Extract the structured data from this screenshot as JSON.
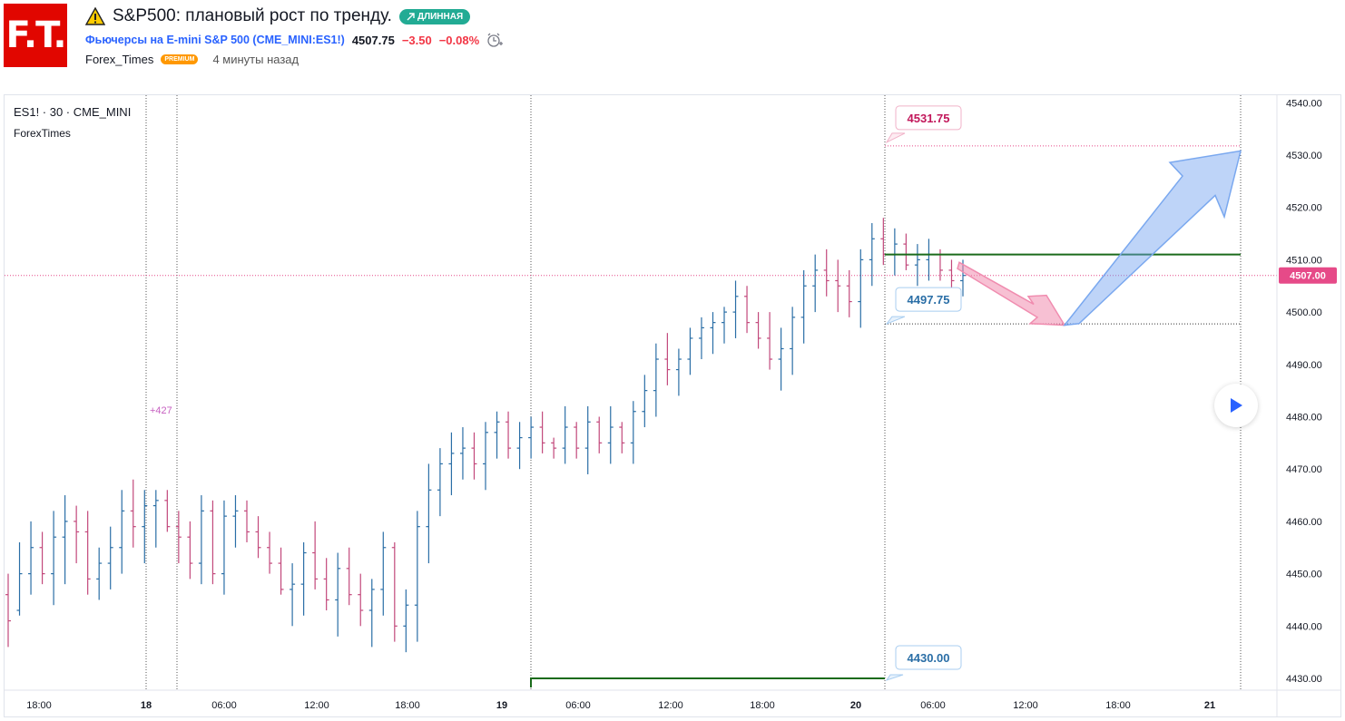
{
  "header": {
    "logo_text": "F.T.",
    "warning_icon": "warning-icon",
    "title": "S&P500: плановый рост по тренду.",
    "badge": "ДЛИННАЯ",
    "badge_icon": "arrow-up-right-icon",
    "symbol_link": "Фьючерсы на E-mini S&P 500 (CME_MINI:ES1!)",
    "price": "4507.75",
    "change": "−3.50",
    "change_pct": "−0.08%",
    "alert_icon": "alarm-clock-icon",
    "author": "Forex_Times",
    "author_badge": "PREMIUM",
    "time_ago": "4 минуты назад"
  },
  "chart": {
    "symbol_info": "ES1! · 30 · CME_MINI",
    "publisher": "ForexTimes",
    "gap_label": "+427",
    "current_price_label": "4507.00",
    "target_high_label": "4531.75",
    "target_low_label": "4497.75",
    "support_label": "4430.00",
    "y_ticks": [
      "4540.00",
      "4530.00",
      "4520.00",
      "4510.00",
      "4500.00",
      "4490.00",
      "4480.00",
      "4470.00",
      "4460.00",
      "4450.00",
      "4440.00",
      "4430.00"
    ],
    "x_ticks": [
      "18:00",
      "18",
      "06:00",
      "12:00",
      "18:00",
      "19",
      "06:00",
      "12:00",
      "18:00",
      "20",
      "06:00",
      "12:00",
      "18:00",
      "21"
    ],
    "colors": {
      "up": "#2a6ea6",
      "down": "#c2487b",
      "accent_pink": "#e64a88",
      "accent_blue": "#5b8fd9",
      "support": "#1b6b1b"
    }
  },
  "chart_data": {
    "type": "ohlc",
    "title": "",
    "xlabel": "",
    "ylabel": "",
    "ylim": [
      4425,
      4542
    ],
    "annotations": {
      "target_high": 4531.75,
      "target_low": 4497.75,
      "support": 4430.0,
      "current": 4507.0,
      "resistance_line": 4511
    },
    "bars": [
      [
        4446,
        4436,
        4450,
        4441
      ],
      [
        4443,
        4442,
        4456,
        4450
      ],
      [
        4450,
        4446,
        4460,
        4455
      ],
      [
        4455,
        4448,
        4458,
        4450
      ],
      [
        4450,
        4444,
        4462,
        4457
      ],
      [
        4457,
        4448,
        4465,
        4460
      ],
      [
        4460,
        4452,
        4463,
        4458
      ],
      [
        4458,
        4446,
        4462,
        4449
      ],
      [
        4449,
        4445,
        4455,
        4452
      ],
      [
        4452,
        4447,
        4459,
        4455
      ],
      [
        4455,
        4450,
        4466,
        4462
      ],
      [
        4462,
        4455,
        4468,
        4459
      ],
      [
        4459,
        4452,
        4466,
        4463
      ],
      [
        4463,
        4455,
        4466,
        4464
      ],
      [
        4464,
        4458,
        4466,
        4459
      ],
      [
        4459,
        4452,
        4462,
        4457
      ],
      [
        4457,
        4449,
        4460,
        4452
      ],
      [
        4452,
        4448,
        4465,
        4462
      ],
      [
        4462,
        4448,
        4464,
        4450
      ],
      [
        4450,
        4446,
        4464,
        4461
      ],
      [
        4461,
        4455,
        4465,
        4462
      ],
      [
        4462,
        4456,
        4464,
        4458
      ],
      [
        4458,
        4453,
        4461,
        4455
      ],
      [
        4455,
        4450,
        4458,
        4452
      ],
      [
        4452,
        4446,
        4455,
        4447
      ],
      [
        4447,
        4440,
        4452,
        4448
      ],
      [
        4448,
        4442,
        4456,
        4454
      ],
      [
        4454,
        4447,
        4460,
        4449
      ],
      [
        4449,
        4443,
        4453,
        4445
      ],
      [
        4445,
        4438,
        4454,
        4451
      ],
      [
        4451,
        4444,
        4455,
        4446
      ],
      [
        4446,
        4440,
        4450,
        4443
      ],
      [
        4443,
        4436,
        4449,
        4447
      ],
      [
        4447,
        4442,
        4458,
        4455
      ],
      [
        4455,
        4437,
        4456,
        4440
      ],
      [
        4440,
        4435,
        4447,
        4444
      ],
      [
        4444,
        4437,
        4462,
        4459
      ],
      [
        4459,
        4452,
        4471,
        4466
      ],
      [
        4466,
        4461,
        4474,
        4471
      ],
      [
        4471,
        4465,
        4477,
        4473
      ],
      [
        4473,
        4468,
        4478,
        4474
      ],
      [
        4474,
        4468,
        4477,
        4471
      ],
      [
        4471,
        4466,
        4479,
        4477
      ],
      [
        4477,
        4472,
        4481,
        4479
      ],
      [
        4479,
        4472,
        4481,
        4474
      ],
      [
        4474,
        4470,
        4479,
        4476
      ],
      [
        4476,
        4472,
        4480,
        4478
      ],
      [
        4478,
        4473,
        4481,
        4475
      ],
      [
        4475,
        4472,
        4476,
        4474
      ],
      [
        4474,
        4471,
        4482,
        4478
      ],
      [
        4478,
        4472,
        4479,
        4474
      ],
      [
        4474,
        4469,
        4482,
        4479
      ],
      [
        4479,
        4473,
        4480,
        4475
      ],
      [
        4475,
        4471,
        4482,
        4478
      ],
      [
        4478,
        4473,
        4479,
        4475
      ],
      [
        4475,
        4471,
        4483,
        4481
      ],
      [
        4481,
        4478,
        4488,
        4485
      ],
      [
        4485,
        4480,
        4494,
        4491
      ],
      [
        4491,
        4486,
        4496,
        4489
      ],
      [
        4489,
        4484,
        4493,
        4491
      ],
      [
        4491,
        4488,
        4497,
        4495
      ],
      [
        4495,
        4491,
        4499,
        4497
      ],
      [
        4497,
        4492,
        4500,
        4498
      ],
      [
        4498,
        4494,
        4501,
        4500
      ],
      [
        4500,
        4495,
        4506,
        4503
      ],
      [
        4503,
        4496,
        4505,
        4498
      ],
      [
        4498,
        4493,
        4500,
        4495
      ],
      [
        4495,
        4489,
        4500,
        4491
      ],
      [
        4491,
        4485,
        4497,
        4493
      ],
      [
        4493,
        4488,
        4501,
        4499
      ],
      [
        4499,
        4494,
        4508,
        4505
      ],
      [
        4505,
        4500,
        4511,
        4508
      ],
      [
        4508,
        4503,
        4512,
        4506
      ],
      [
        4506,
        4500,
        4510,
        4505
      ],
      [
        4505,
        4499,
        4508,
        4502
      ],
      [
        4502,
        4497,
        4512,
        4510
      ],
      [
        4510,
        4505,
        4517,
        4514
      ],
      [
        4514,
        4509,
        4518,
        4511
      ],
      [
        4511,
        4507,
        4516,
        4513
      ],
      [
        4513,
        4508,
        4515,
        4509
      ],
      [
        4509,
        4505,
        4513,
        4510
      ],
      [
        4510,
        4506,
        4514,
        4511
      ],
      [
        4511,
        4506,
        4512,
        4508
      ],
      [
        4508,
        4504,
        4510,
        4506
      ],
      [
        4506,
        4503,
        4510,
        4507
      ]
    ]
  }
}
